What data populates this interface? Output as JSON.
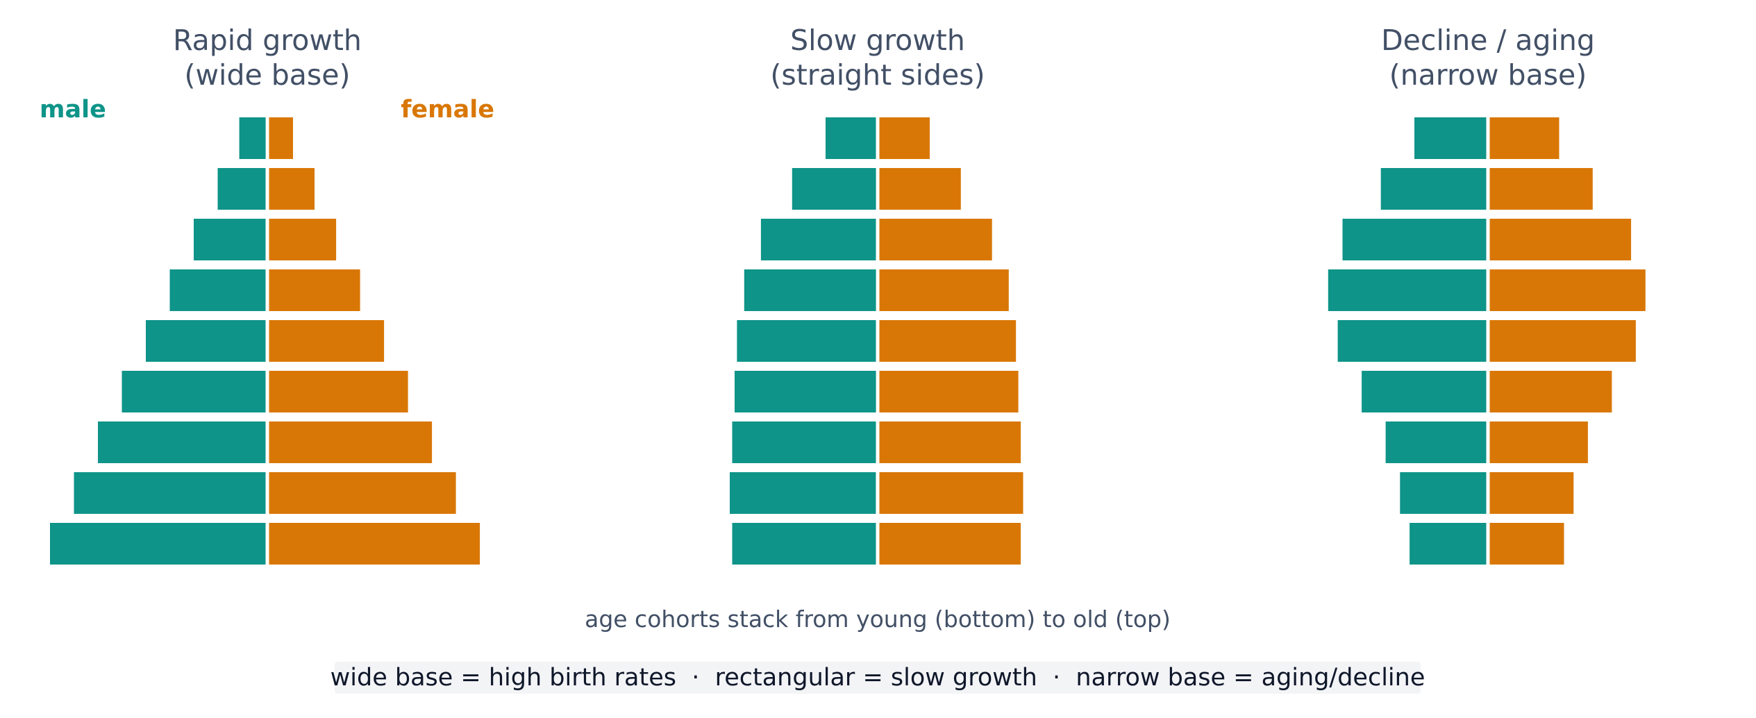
{
  "colors": {
    "male": "#0e9488",
    "female": "#d97706",
    "title_text": "#425066",
    "footnote_bg": "#f3f4f6",
    "footnote_text": "#0f172a"
  },
  "legend": {
    "male_label": "male",
    "female_label": "female"
  },
  "caption": "age cohorts stack from young (bottom) to old (top)",
  "footnote": "wide base = high birth rates  ·  rectangular = slow growth  ·  narrow base = aging/decline",
  "chart_data": [
    {
      "type": "bar",
      "orientation": "horizontal-mirrored",
      "title_lines": [
        "Rapid growth",
        "(wide base)"
      ],
      "cohort_order": "bottom = youngest, top = oldest",
      "series": [
        {
          "name": "male",
          "values": [
            9.0,
            8.0,
            7.0,
            6.0,
            5.0,
            4.0,
            3.0,
            2.0,
            1.1
          ]
        },
        {
          "name": "female",
          "values": [
            8.8,
            7.8,
            6.8,
            5.8,
            4.8,
            3.8,
            2.8,
            1.9,
            1.0
          ]
        }
      ]
    },
    {
      "type": "bar",
      "orientation": "horizontal-mirrored",
      "title_lines": [
        "Slow growth",
        "(straight sides)"
      ],
      "cohort_order": "bottom = youngest, top = oldest",
      "series": [
        {
          "name": "male",
          "values": [
            6.0,
            6.1,
            6.0,
            5.9,
            5.8,
            5.5,
            4.8,
            3.5,
            2.1
          ]
        },
        {
          "name": "female",
          "values": [
            5.9,
            6.0,
            5.9,
            5.8,
            5.7,
            5.4,
            4.7,
            3.4,
            2.1
          ]
        }
      ]
    },
    {
      "type": "bar",
      "orientation": "horizontal-mirrored",
      "title_lines": [
        "Decline / aging",
        "(narrow base)"
      ],
      "cohort_order": "bottom = youngest, top = oldest",
      "series": [
        {
          "name": "male",
          "values": [
            3.2,
            3.6,
            4.2,
            5.2,
            6.2,
            6.6,
            6.0,
            4.4,
            3.0
          ]
        },
        {
          "name": "female",
          "values": [
            3.1,
            3.5,
            4.1,
            5.1,
            6.1,
            6.5,
            5.9,
            4.3,
            2.9
          ]
        }
      ]
    }
  ]
}
